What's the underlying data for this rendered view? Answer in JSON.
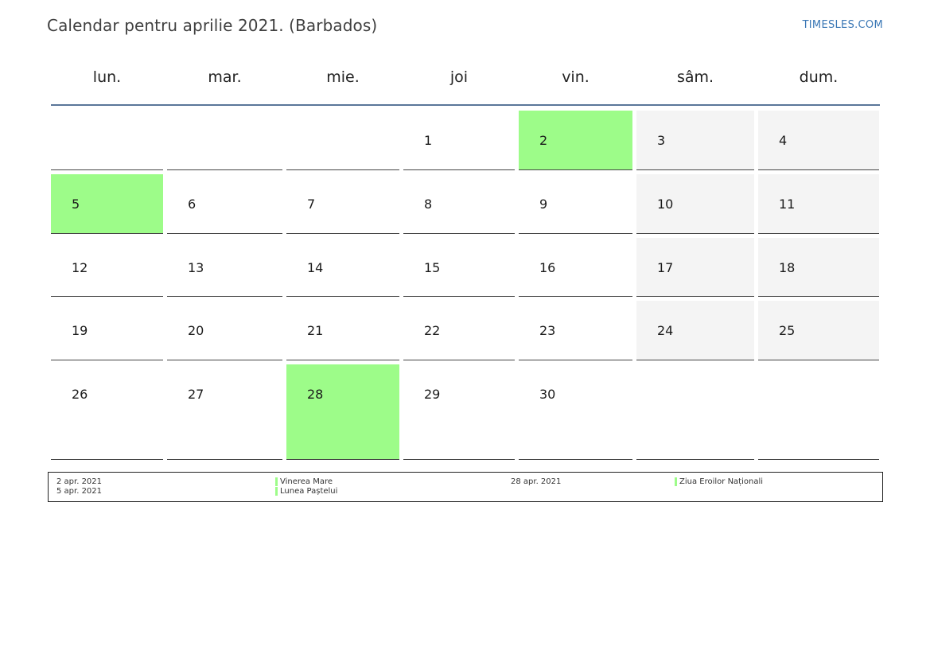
{
  "header": {
    "title": "Calendar pentru aprilie 2021. (Barbados)",
    "brand": "TIMESLES.COM"
  },
  "weekdays": [
    "lun.",
    "mar.",
    "mie.",
    "joi",
    "vin.",
    "sâm.",
    "dum."
  ],
  "weeks": [
    [
      "",
      "",
      "",
      "1",
      "2",
      "3",
      "4"
    ],
    [
      "5",
      "6",
      "7",
      "8",
      "9",
      "10",
      "11"
    ],
    [
      "12",
      "13",
      "14",
      "15",
      "16",
      "17",
      "18"
    ],
    [
      "19",
      "20",
      "21",
      "22",
      "23",
      "24",
      "25"
    ],
    [
      "26",
      "27",
      "28",
      "29",
      "30",
      "",
      ""
    ]
  ],
  "holiday_days": [
    "2",
    "5",
    "28"
  ],
  "colors": {
    "holiday": "#9dfc89",
    "weekend": "#f4f4f4",
    "header_rule": "#5a7699",
    "brand": "#3a77b5"
  },
  "legend": [
    {
      "date": "2 apr. 2021",
      "name": "Vinerea Mare"
    },
    {
      "date": "5 apr. 2021",
      "name": "Lunea Paștelui"
    },
    {
      "date": "28 apr. 2021",
      "name": "Ziua Eroilor Naționali"
    }
  ]
}
